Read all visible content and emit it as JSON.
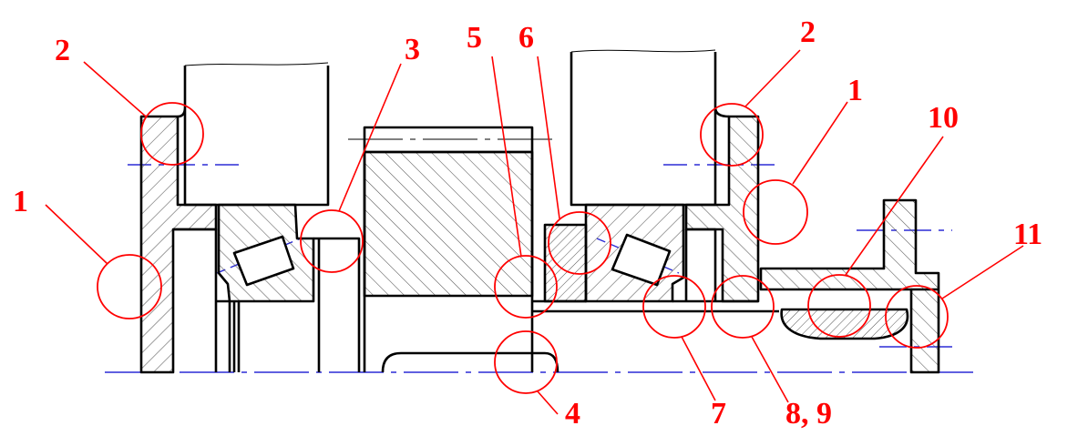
{
  "colors": {
    "callout": "#ff0000",
    "centerline": "#2b2bd6",
    "outline": "#000000",
    "hatch": "#555555",
    "background": "#ffffff"
  },
  "callouts": [
    {
      "id": "1-left",
      "text": "1"
    },
    {
      "id": "2-left",
      "text": "2"
    },
    {
      "id": "3",
      "text": "3"
    },
    {
      "id": "5",
      "text": "5"
    },
    {
      "id": "6",
      "text": "6"
    },
    {
      "id": "2-right",
      "text": "2"
    },
    {
      "id": "1-right",
      "text": "1"
    },
    {
      "id": "10",
      "text": "10"
    },
    {
      "id": "11",
      "text": "11"
    },
    {
      "id": "4",
      "text": "4"
    },
    {
      "id": "7",
      "text": "7"
    },
    {
      "id": "8-9",
      "text": "8, 9"
    }
  ]
}
